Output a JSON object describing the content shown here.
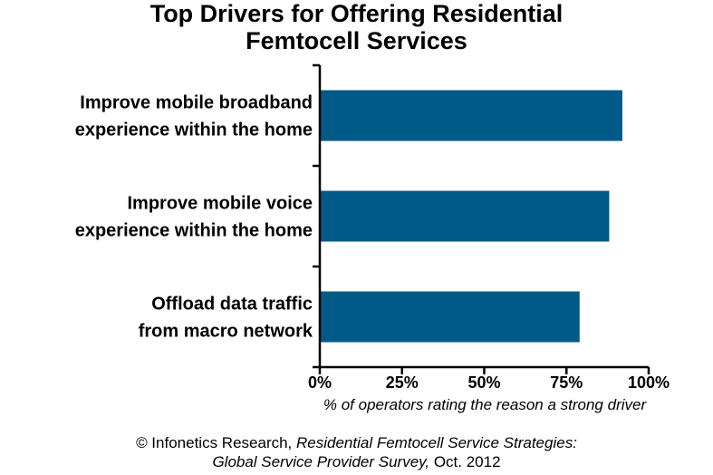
{
  "chart_data": {
    "type": "bar",
    "orientation": "horizontal",
    "title": [
      "Top Drivers for Offering Residential",
      "Femtocell Services"
    ],
    "categories": [
      [
        "Improve mobile broadband",
        "experience within the home"
      ],
      [
        "Improve mobile voice",
        "experience within the home"
      ],
      [
        "Offload data traffic",
        "from macro network"
      ]
    ],
    "values": [
      92,
      88,
      79
    ],
    "xlabel": "% of operators rating the reason a strong driver",
    "xlim": [
      0,
      100
    ],
    "xticks": [
      0,
      25,
      50,
      75,
      100
    ],
    "xtick_labels": [
      "0%",
      "25%",
      "50%",
      "75%",
      "100%"
    ],
    "bar_color": "#005a87",
    "grid": false,
    "legend": "none"
  },
  "source": {
    "line1_plain": "© Infonetics Research, ",
    "line1_italic": "Residential Femtocell Service Strategies:",
    "line2_italic": "Global Service Provider Survey,",
    "line2_plain": " Oct. 2012"
  }
}
